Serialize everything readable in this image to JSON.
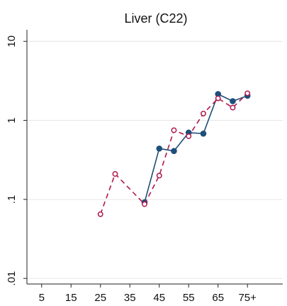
{
  "chart_data": {
    "type": "line",
    "title": "Liver (C22)",
    "xlabel": "",
    "ylabel": "",
    "y_scale": "log",
    "ylim": [
      0.0085,
      14
    ],
    "xlim": [
      0,
      87
    ],
    "y_ticks": [
      {
        "value": 10,
        "label": "10"
      },
      {
        "value": 1,
        "label": "1"
      },
      {
        "value": 0.1,
        "label": ".1"
      },
      {
        "value": 0.01,
        "label": ".01"
      }
    ],
    "x_ticks": [
      {
        "value": 5,
        "label": "5"
      },
      {
        "value": 15,
        "label": "15"
      },
      {
        "value": 25,
        "label": "25"
      },
      {
        "value": 35,
        "label": "35"
      },
      {
        "value": 45,
        "label": "45"
      },
      {
        "value": 55,
        "label": "55"
      },
      {
        "value": 65,
        "label": "65"
      },
      {
        "value": 75,
        "label": "75+"
      }
    ],
    "grid": true,
    "legend": "none",
    "series": [
      {
        "style": "solid",
        "marker": "filled-circle",
        "color": "#1f4e79",
        "points": [
          {
            "x": 40,
            "y": 0.092
          },
          {
            "x": 45,
            "y": 0.44
          },
          {
            "x": 50,
            "y": 0.41
          },
          {
            "x": 55,
            "y": 0.7
          },
          {
            "x": 60,
            "y": 0.68
          },
          {
            "x": 65,
            "y": 2.15
          },
          {
            "x": 70,
            "y": 1.75
          },
          {
            "x": 75,
            "y": 2.05
          }
        ]
      },
      {
        "style": "dashed",
        "marker": "hollow-circle",
        "color": "#b0174f",
        "points": [
          {
            "x": 25,
            "y": 0.065
          },
          {
            "x": 30,
            "y": 0.21
          },
          {
            "x": 40,
            "y": 0.087
          },
          {
            "x": 45,
            "y": 0.2
          },
          {
            "x": 50,
            "y": 0.75
          },
          {
            "x": 55,
            "y": 0.63
          },
          {
            "x": 60,
            "y": 1.22
          },
          {
            "x": 65,
            "y": 1.9
          },
          {
            "x": 70,
            "y": 1.45
          },
          {
            "x": 75,
            "y": 2.2
          }
        ]
      }
    ]
  }
}
